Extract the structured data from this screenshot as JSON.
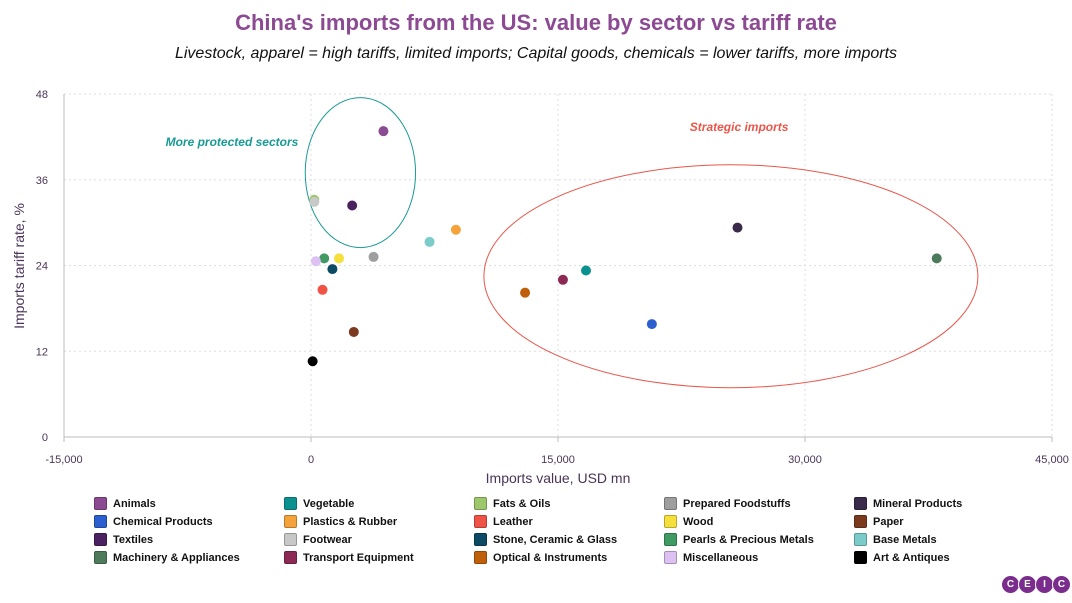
{
  "title": "China's imports from the US: value by sector vs tariff rate",
  "subtitle": "Livestock, apparel = high tariffs, limited imports; Capital goods, chemicals = lower tariffs, more imports",
  "logo": [
    "C",
    "E",
    "I",
    "C"
  ],
  "chart_data": {
    "type": "scatter",
    "xlabel": "Imports value, USD mn",
    "ylabel": "Imports tariff rate, %",
    "xlim": [
      -15000,
      45000
    ],
    "ylim": [
      0,
      48
    ],
    "xticks": [
      -15000,
      0,
      15000,
      30000,
      45000
    ],
    "xtick_labels": [
      "-15,000",
      "0",
      "15,000",
      "30,000",
      "45,000"
    ],
    "yticks": [
      0,
      12,
      24,
      36,
      48
    ],
    "ytick_labels": [
      "0",
      "12",
      "24",
      "36",
      "48"
    ],
    "grid": true,
    "annotations": [
      {
        "text": "More protected sectors",
        "x": -4800,
        "y": 40.7,
        "color": "#1a9a95"
      },
      {
        "text": "Strategic imports",
        "x": 26000,
        "y": 42.8,
        "color": "#e9564a"
      }
    ],
    "highlight_ellipses": [
      {
        "label": "More protected sectors",
        "cx": 3000,
        "cy": 37,
        "rx": 3350,
        "ry": 10.5,
        "color": "#1a9a95"
      },
      {
        "label": "Strategic imports",
        "cx": 25500,
        "cy": 22.5,
        "rx": 15000,
        "ry": 15.6,
        "color": "#e9564a"
      }
    ],
    "series": [
      {
        "name": "Animals",
        "color": "#8b4a92",
        "x": 4400,
        "y": 42.8
      },
      {
        "name": "Vegetable",
        "color": "#0b9290",
        "x": 16700,
        "y": 23.3
      },
      {
        "name": "Fats & Oils",
        "color": "#9cc86b",
        "x": 200,
        "y": 33.2
      },
      {
        "name": "Prepared Foodstuffs",
        "color": "#9e9e9e",
        "x": 3800,
        "y": 25.2
      },
      {
        "name": "Mineral Products",
        "color": "#3a2a4a",
        "x": 25900,
        "y": 29.3
      },
      {
        "name": "Chemical Products",
        "color": "#2b5fd0",
        "x": 20700,
        "y": 15.8
      },
      {
        "name": "Plastics & Rubber",
        "color": "#f5a23b",
        "x": 8800,
        "y": 29.0
      },
      {
        "name": "Leather",
        "color": "#ee5346",
        "x": 700,
        "y": 20.6
      },
      {
        "name": "Wood",
        "color": "#f5df3a",
        "x": 1700,
        "y": 25.0
      },
      {
        "name": "Paper",
        "color": "#7b3a1e",
        "x": 2600,
        "y": 14.7
      },
      {
        "name": "Textiles",
        "color": "#4a2260",
        "x": 2500,
        "y": 32.4
      },
      {
        "name": "Footwear",
        "color": "#c8c8c8",
        "x": 200,
        "y": 32.9
      },
      {
        "name": "Stone, Ceramic & Glass",
        "color": "#0d4a63",
        "x": 1300,
        "y": 23.5
      },
      {
        "name": "Pearls & Precious Metals",
        "color": "#3f9a63",
        "x": 800,
        "y": 25.0
      },
      {
        "name": "Base Metals",
        "color": "#7ccbcb",
        "x": 7200,
        "y": 27.3
      },
      {
        "name": "Machinery & Appliances",
        "color": "#4e7a5c",
        "x": 38000,
        "y": 25.0
      },
      {
        "name": "Transport Equipment",
        "color": "#8c2a55",
        "x": 15300,
        "y": 22.0
      },
      {
        "name": "Optical & Instruments",
        "color": "#c05f0a",
        "x": 13000,
        "y": 20.2
      },
      {
        "name": "Miscellaneous",
        "color": "#dcc1f2",
        "x": 300,
        "y": 24.6
      },
      {
        "name": "Art & Antiques",
        "color": "#000000",
        "x": 100,
        "y": 10.6
      }
    ]
  }
}
